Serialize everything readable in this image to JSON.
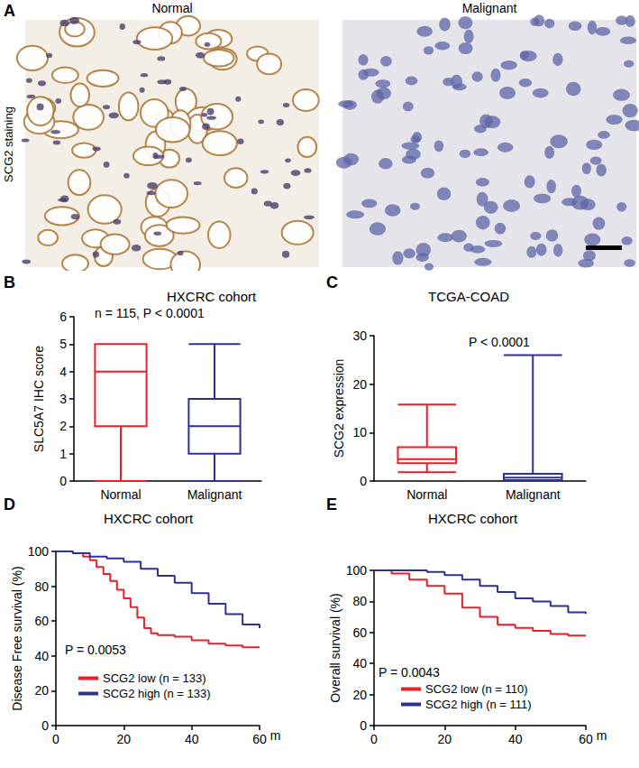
{
  "panel_a": {
    "panel": "A",
    "y_label": "SCG2 staining",
    "images": [
      "Normal",
      "Malignant"
    ]
  },
  "chart_data": [
    {
      "type": "boxplot",
      "panel": "B",
      "title": "HXCRC cohort",
      "annotations": [
        "n = 115, P < 0.0001"
      ],
      "y_label": "SLC5A7 IHC score",
      "categories": [
        "Normal",
        "Malignant"
      ],
      "values": [
        [
          0,
          2,
          4,
          5,
          5
        ],
        [
          0,
          1,
          2,
          3,
          5
        ]
      ],
      "colors": [
        "#e8202a",
        "#2e3192"
      ],
      "ylim": [
        0,
        6
      ],
      "yticks": [
        0,
        1,
        2,
        3,
        4,
        5,
        6
      ],
      "grid": false
    },
    {
      "type": "boxplot",
      "panel": "C",
      "title": "TCGA-COAD",
      "annotations": [
        "P < 0.0001"
      ],
      "y_label": "SCG2 expression",
      "categories": [
        "Normal",
        "Malignant"
      ],
      "values": [
        [
          1.8,
          3.7,
          4.5,
          7,
          15.8
        ],
        [
          0,
          0.2,
          0.7,
          1.5,
          26
        ]
      ],
      "colors": [
        "#e8202a",
        "#2e3192"
      ],
      "ylim": [
        0,
        30
      ],
      "yticks": [
        0,
        10,
        20,
        30
      ],
      "grid": false
    },
    {
      "type": "line",
      "panel": "D",
      "title": "HXCRC cohort",
      "annotations": [
        "P = 0.0053"
      ],
      "y_label": "Disease Free survival (%)",
      "x_label": "m",
      "line_style": "step",
      "legend": "lower left",
      "xlim": [
        0,
        60
      ],
      "xticks": [
        0,
        20,
        40,
        60
      ],
      "ylim": [
        0,
        100
      ],
      "yticks": [
        0,
        20,
        40,
        60,
        80,
        100
      ],
      "grid": false,
      "series": [
        {
          "name": "SCG2 low (n = 133)",
          "color": "#e8202a",
          "x": [
            0,
            5,
            8,
            10,
            12,
            14,
            16,
            18,
            20,
            22,
            24,
            26,
            28,
            30,
            35,
            40,
            45,
            50,
            55,
            60
          ],
          "values": [
            100,
            99,
            97,
            95,
            91,
            87,
            83,
            78,
            73,
            68,
            62,
            56,
            53,
            52,
            51,
            49,
            47,
            46,
            45,
            45
          ]
        },
        {
          "name": "SCG2 high (n = 133)",
          "color": "#2e3192",
          "x": [
            0,
            5,
            10,
            15,
            20,
            25,
            30,
            35,
            40,
            45,
            50,
            55,
            60
          ],
          "values": [
            100,
            99,
            97,
            96,
            94,
            90,
            86,
            82,
            76,
            70,
            64,
            58,
            56
          ]
        }
      ]
    },
    {
      "type": "line",
      "panel": "E",
      "title": "HXCRC cohort",
      "annotations": [
        "P = 0.0043"
      ],
      "y_label": "Overall survival (%)",
      "x_label": "m",
      "line_style": "step",
      "legend": "lower left",
      "xlim": [
        0,
        60
      ],
      "xticks": [
        0,
        20,
        40,
        60
      ],
      "ylim": [
        0,
        100
      ],
      "yticks": [
        0,
        20,
        40,
        60,
        80,
        100
      ],
      "grid": false,
      "series": [
        {
          "name": "SCG2 low (n = 110)",
          "color": "#e8202a",
          "x": [
            0,
            5,
            10,
            15,
            20,
            25,
            30,
            35,
            40,
            45,
            50,
            55,
            60
          ],
          "values": [
            100,
            98,
            94,
            90,
            85,
            76,
            70,
            65,
            63,
            61,
            59,
            58,
            58
          ]
        },
        {
          "name": "SCG2 high (n = 111)",
          "color": "#2e3192",
          "x": [
            0,
            10,
            15,
            20,
            25,
            30,
            35,
            40,
            45,
            50,
            55,
            60
          ],
          "values": [
            100,
            100,
            99,
            97,
            94,
            90,
            86,
            82,
            80,
            77,
            73,
            72
          ]
        }
      ]
    }
  ]
}
